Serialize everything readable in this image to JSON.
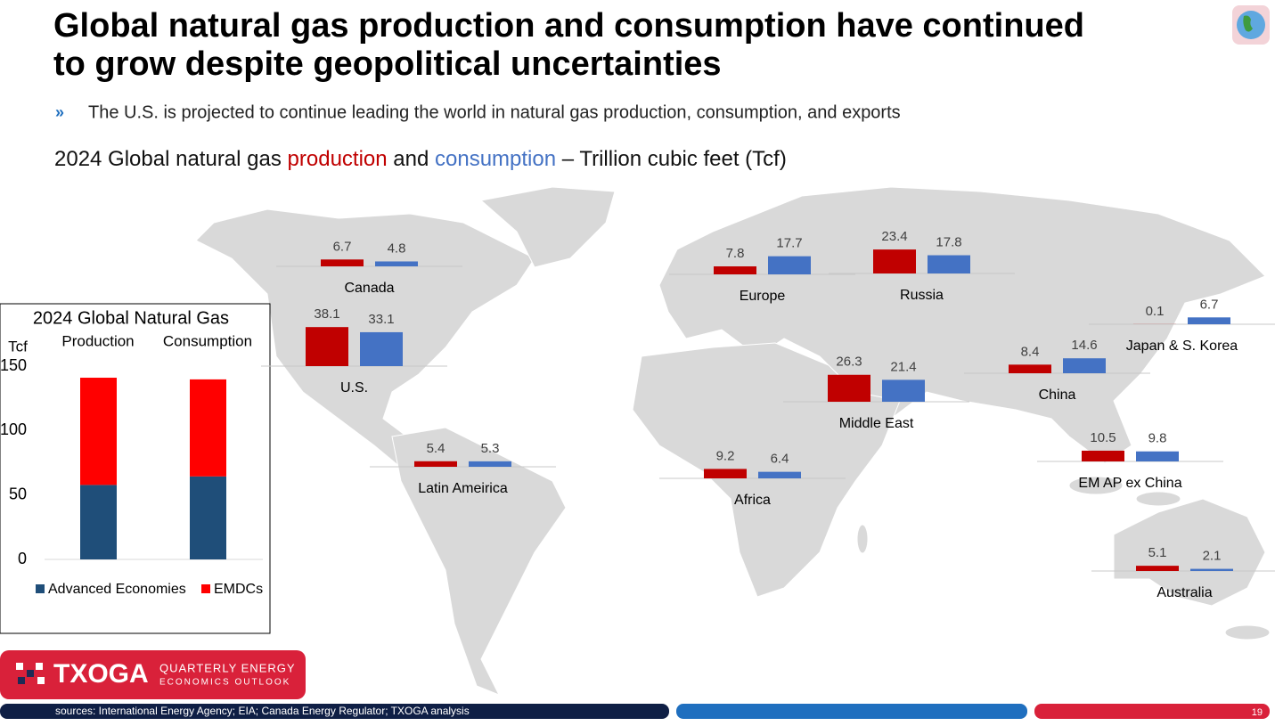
{
  "title_lines": [
    "Global natural gas production and consumption have continued",
    "to grow despite geopolitical uncertainties"
  ],
  "bullet": "The U.S. is projected to continue leading the world in natural gas production, consumption, and exports",
  "chart_data": [
    {
      "type": "bar",
      "title_before": "2024 Global natural gas",
      "title_between": "and",
      "title_after": "– Trillion cubic feet (Tcf)",
      "categories": [
        "Canada",
        "U.S.",
        "Latin Ameirica",
        "Africa",
        "Europe",
        "Russia",
        "Middle East",
        "China",
        "Japan & S. Korea",
        "EM AP ex China",
        "Australia"
      ],
      "series": [
        {
          "name": "production",
          "color": "#c00000",
          "values": [
            6.7,
            38.1,
            5.4,
            9.2,
            7.8,
            23.4,
            26.3,
            8.4,
            0.1,
            10.5,
            5.1
          ]
        },
        {
          "name": "consumption",
          "color": "#4472c4",
          "values": [
            4.8,
            33.1,
            5.3,
            6.4,
            17.7,
            17.8,
            21.4,
            14.6,
            6.7,
            9.8,
            2.1
          ]
        }
      ]
    },
    {
      "type": "bar",
      "stacked": true,
      "title": "2024 Global Natural Gas",
      "y_label": "Tcf",
      "categories": [
        "Production",
        "Consumption"
      ],
      "series": [
        {
          "name": "Advanced Economies",
          "color": "#1f4e79",
          "values": [
            57.8,
            64.4
          ]
        },
        {
          "name": "EMDCs",
          "color": "#ff0000",
          "values": [
            83.2,
            75.3
          ]
        }
      ],
      "ylim": [
        0,
        150
      ],
      "yticks": [
        0,
        50,
        100,
        150
      ],
      "legend": "bottom"
    }
  ],
  "logo": {
    "name": "TXOGA",
    "line1": "QUARTERLY ENERGY",
    "line2": "ECONOMICS OUTLOOK"
  },
  "footer": {
    "sources": "sources: International Energy Agency; EIA; Canada Energy Regulator; TXOGA analysis",
    "page": "19"
  }
}
